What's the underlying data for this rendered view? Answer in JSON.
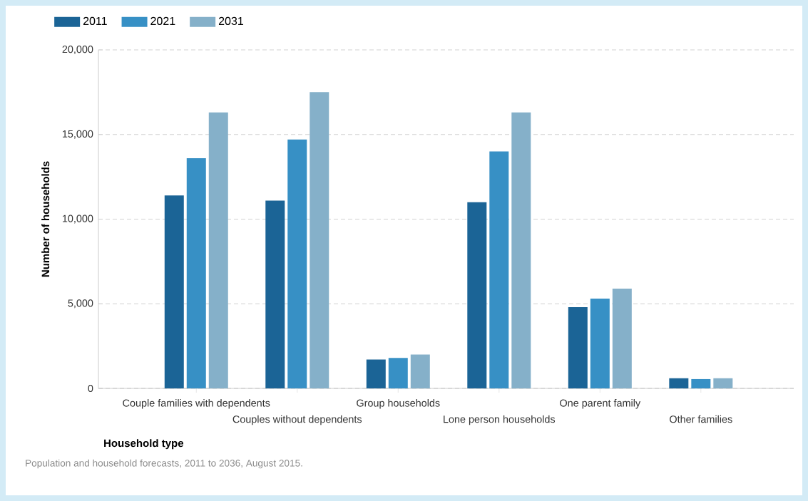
{
  "chart_data": {
    "type": "bar",
    "categories": [
      "Couple families with dependents",
      "Couples without dependents",
      "Group households",
      "Lone person households",
      "One parent family",
      "Other families"
    ],
    "series": [
      {
        "name": "2011",
        "color": "#1b6496",
        "values": [
          11400,
          11100,
          1700,
          11000,
          4800,
          600
        ]
      },
      {
        "name": "2021",
        "color": "#3790c5",
        "values": [
          13600,
          14700,
          1800,
          14000,
          5300,
          550
        ]
      },
      {
        "name": "2031",
        "color": "#85b0c9",
        "values": [
          16300,
          17500,
          2000,
          16300,
          5900,
          600
        ]
      }
    ],
    "ylabel": "Number of households",
    "xlabel": "Household type",
    "ylim": [
      0,
      20000
    ],
    "yticks": [
      {
        "value": 0,
        "label": "0"
      },
      {
        "value": 5000,
        "label": "5,000"
      },
      {
        "value": 10000,
        "label": "10,000"
      },
      {
        "value": 15000,
        "label": "15,000"
      },
      {
        "value": 20000,
        "label": "20,000"
      }
    ],
    "grid": "y",
    "legend": "top left",
    "annotations": [
      "Population and household forecasts, 2011 to 2036, August 2015."
    ]
  }
}
